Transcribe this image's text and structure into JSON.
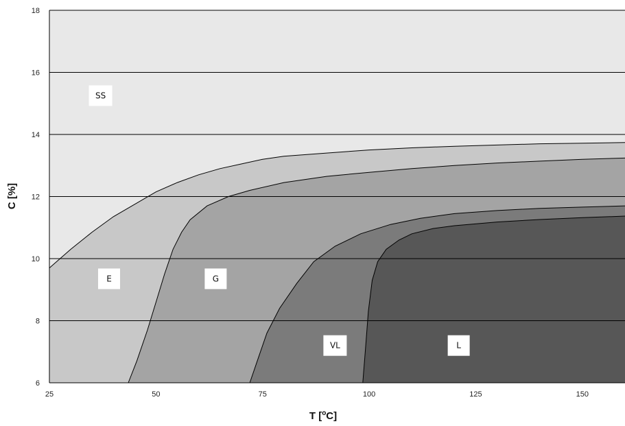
{
  "chart_data": {
    "type": "area",
    "xlabel": "T [",
    "xlabel_sup": "o",
    "xlabel_end": "C]",
    "ylabel": "C [%]",
    "xlim": [
      25,
      160
    ],
    "ylim": [
      6,
      18
    ],
    "x_ticks": [
      25,
      50,
      75,
      100,
      125,
      150
    ],
    "y_ticks": [
      6,
      8,
      10,
      12,
      14,
      16,
      18
    ],
    "grid": "horizontal",
    "boundaries": [
      {
        "name": "SS/E",
        "points": [
          [
            25,
            9.7
          ],
          [
            30,
            10.3
          ],
          [
            35,
            10.85
          ],
          [
            40,
            11.35
          ],
          [
            45,
            11.75
          ],
          [
            50,
            12.15
          ],
          [
            55,
            12.45
          ],
          [
            60,
            12.7
          ],
          [
            65,
            12.9
          ],
          [
            70,
            13.05
          ],
          [
            75,
            13.2
          ],
          [
            80,
            13.3
          ],
          [
            90,
            13.4
          ],
          [
            100,
            13.5
          ],
          [
            110,
            13.57
          ],
          [
            120,
            13.62
          ],
          [
            130,
            13.66
          ],
          [
            140,
            13.7
          ],
          [
            150,
            13.72
          ],
          [
            160,
            13.74
          ]
        ]
      },
      {
        "name": "E/G",
        "points": [
          [
            43.5,
            6
          ],
          [
            45.5,
            6.7
          ],
          [
            48,
            7.7
          ],
          [
            50,
            8.6
          ],
          [
            52,
            9.5
          ],
          [
            54,
            10.3
          ],
          [
            56,
            10.85
          ],
          [
            58,
            11.25
          ],
          [
            62,
            11.7
          ],
          [
            67,
            12.0
          ],
          [
            72,
            12.2
          ],
          [
            80,
            12.45
          ],
          [
            90,
            12.65
          ],
          [
            100,
            12.78
          ],
          [
            110,
            12.9
          ],
          [
            120,
            13.0
          ],
          [
            130,
            13.08
          ],
          [
            140,
            13.14
          ],
          [
            150,
            13.2
          ],
          [
            160,
            13.24
          ]
        ]
      },
      {
        "name": "G/VL",
        "points": [
          [
            72,
            6
          ],
          [
            74,
            6.8
          ],
          [
            76,
            7.6
          ],
          [
            79,
            8.4
          ],
          [
            83,
            9.2
          ],
          [
            87,
            9.9
          ],
          [
            92,
            10.4
          ],
          [
            98,
            10.8
          ],
          [
            105,
            11.1
          ],
          [
            112,
            11.3
          ],
          [
            120,
            11.45
          ],
          [
            130,
            11.55
          ],
          [
            140,
            11.62
          ],
          [
            150,
            11.66
          ],
          [
            160,
            11.7
          ]
        ]
      },
      {
        "name": "VL/L",
        "points": [
          [
            98.5,
            6
          ],
          [
            99.2,
            7.2
          ],
          [
            99.8,
            8.3
          ],
          [
            100.7,
            9.3
          ],
          [
            102,
            9.9
          ],
          [
            104,
            10.3
          ],
          [
            107,
            10.6
          ],
          [
            110,
            10.8
          ],
          [
            115,
            10.97
          ],
          [
            120,
            11.06
          ],
          [
            130,
            11.18
          ],
          [
            140,
            11.26
          ],
          [
            150,
            11.32
          ],
          [
            160,
            11.37
          ]
        ]
      }
    ],
    "regions": [
      {
        "name": "SS",
        "label": "SS",
        "color": "#e8e8e8",
        "label_at": [
          37,
          15.25
        ]
      },
      {
        "name": "E",
        "label": "E",
        "color": "#c8c8c8",
        "label_at": [
          39,
          9.35
        ]
      },
      {
        "name": "G",
        "label": "G",
        "color": "#a4a4a4",
        "label_at": [
          64,
          9.35
        ]
      },
      {
        "name": "VL",
        "label": "VL",
        "color": "#7b7b7b",
        "label_at": [
          92,
          7.2
        ]
      },
      {
        "name": "L",
        "label": "L",
        "color": "#575757",
        "label_at": [
          121,
          7.2
        ]
      }
    ]
  }
}
